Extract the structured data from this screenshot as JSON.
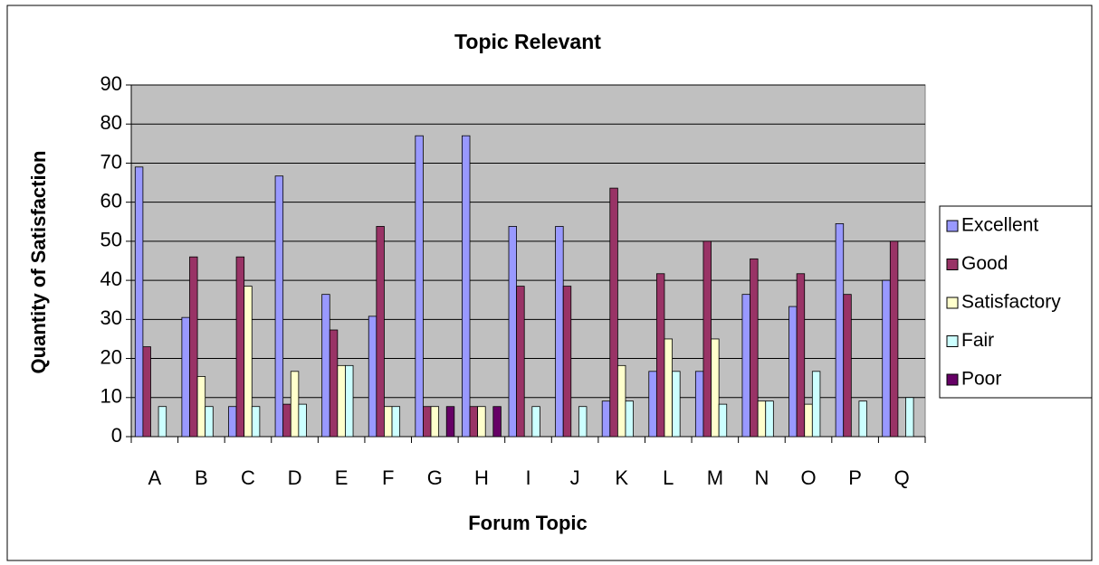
{
  "chart_data": {
    "type": "bar",
    "title": "Topic Relevant",
    "x_label": "Forum Topic",
    "y_label": "Quantity of Satisfaction",
    "categories": [
      "A",
      "B",
      "C",
      "D",
      "E",
      "F",
      "G",
      "H",
      "I",
      "J",
      "K",
      "L",
      "M",
      "N",
      "O",
      "P",
      "Q"
    ],
    "series": [
      {
        "name": "Excellent",
        "color": "#9999FF",
        "values": [
          69,
          30.5,
          7.7,
          66.7,
          36.4,
          30.8,
          77,
          77,
          53.8,
          53.8,
          9.1,
          16.7,
          16.7,
          36.4,
          33.3,
          54.5,
          40
        ]
      },
      {
        "name": "Good",
        "color": "#993366",
        "values": [
          23,
          46,
          46,
          8.3,
          27.3,
          53.8,
          7.7,
          7.7,
          38.5,
          38.5,
          63.6,
          41.7,
          50,
          45.5,
          41.7,
          36.4,
          50
        ]
      },
      {
        "name": "Satisfactory",
        "color": "#FFFFCC",
        "values": [
          0,
          15.4,
          38.5,
          16.7,
          18.2,
          7.7,
          7.7,
          7.7,
          0,
          0,
          18.2,
          25,
          25,
          9.1,
          8.3,
          0,
          0
        ]
      },
      {
        "name": "Fair",
        "color": "#CCFFFF",
        "values": [
          7.7,
          7.7,
          7.7,
          8.3,
          18.2,
          7.7,
          0,
          0,
          7.7,
          7.7,
          9.1,
          16.7,
          8.3,
          9.1,
          16.7,
          9.1,
          10
        ]
      },
      {
        "name": "Poor",
        "color": "#660066",
        "values": [
          0,
          0,
          0,
          0,
          0,
          0,
          7.7,
          7.7,
          0,
          0,
          0,
          0,
          0,
          0,
          0,
          0,
          0
        ]
      }
    ],
    "ylim": [
      0,
      90
    ],
    "yticks": [
      0,
      10,
      20,
      30,
      40,
      50,
      60,
      70,
      80,
      90
    ],
    "grid": true,
    "legend": "right",
    "plot_background": "#C0C0C0"
  }
}
